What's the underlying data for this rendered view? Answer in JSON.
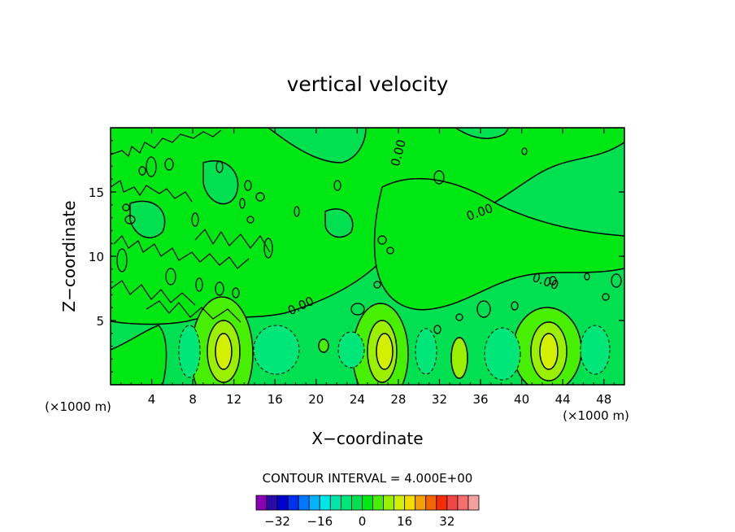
{
  "chart_data": {
    "type": "contour",
    "title": "vertical velocity",
    "xlabel": "X−coordinate",
    "ylabel": "Z−coordinate",
    "x_unit": "(×1000 m)",
    "y_unit": "(×1000 m)",
    "xlim": [
      0,
      50
    ],
    "ylim": [
      0,
      20
    ],
    "x_ticks": [
      "4",
      "8",
      "12",
      "16",
      "20",
      "24",
      "28",
      "32",
      "36",
      "40",
      "44",
      "48"
    ],
    "x_tick_values": [
      4,
      8,
      12,
      16,
      20,
      24,
      28,
      32,
      36,
      40,
      44,
      48
    ],
    "y_ticks": [
      "5",
      "10",
      "15"
    ],
    "y_tick_values": [
      5,
      10,
      15
    ],
    "contour_interval_label": "CONTOUR INTERVAL = 4.000E+00",
    "contour_labels": [
      {
        "text": "0.00",
        "x": 27.6,
        "y": 18.5
      },
      {
        "text": "0.00",
        "x": 36.3,
        "y": 13.1
      },
      {
        "text": "0.00",
        "x": 19.2,
        "y": 6.1
      },
      {
        "text": "0.00",
        "x": 42.1,
        "y": 8.1
      }
    ],
    "updrafts": [
      {
        "x": 11.2,
        "z": 2.6,
        "peak": 12
      },
      {
        "x": 26.5,
        "z": 2.7,
        "peak": 12
      },
      {
        "x": 42.3,
        "z": 2.6,
        "peak": 12
      },
      {
        "x": 33.6,
        "z": 2.0,
        "peak": 8
      }
    ],
    "downdrafts": [
      {
        "x": 7.6,
        "z": 2.4,
        "peak": -4
      },
      {
        "x": 16.3,
        "z": 3.1,
        "peak": -4
      },
      {
        "x": 23.0,
        "z": 2.6,
        "peak": -4
      },
      {
        "x": 30.2,
        "z": 2.5,
        "peak": -4
      },
      {
        "x": 37.8,
        "z": 2.4,
        "peak": -4
      },
      {
        "x": 46.5,
        "z": 2.8,
        "peak": -4
      }
    ],
    "colorbar": {
      "colors": [
        "#8a00b4",
        "#2a0aa8",
        "#0000d0",
        "#0030f0",
        "#0078ff",
        "#00b4ff",
        "#00e6e6",
        "#00e6aa",
        "#00e678",
        "#00e050",
        "#00e814",
        "#46f000",
        "#9bf000",
        "#d2f000",
        "#f5dc00",
        "#f5a000",
        "#f56400",
        "#f52d00",
        "#f04646",
        "#f56e6e",
        "#f5a0a0"
      ],
      "tick_labels": [
        "−32",
        "−16",
        "0",
        "16",
        "32"
      ],
      "tick_values": [
        -32,
        -16,
        0,
        16,
        32
      ]
    }
  }
}
